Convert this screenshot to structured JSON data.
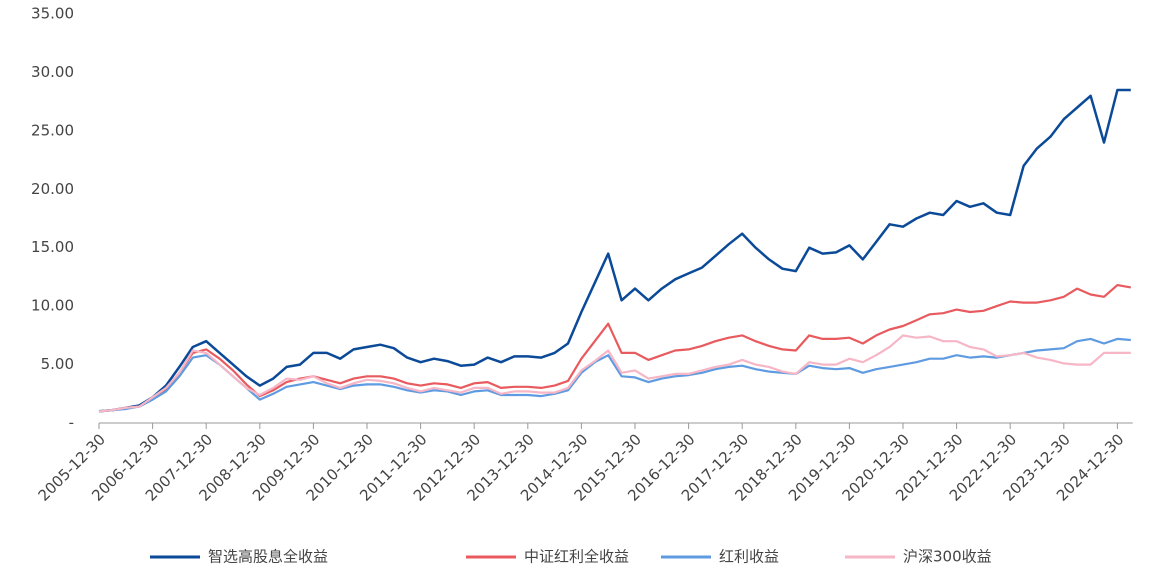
{
  "chart_data": {
    "type": "line",
    "categories": [
      "2005-12-30",
      null,
      null,
      null,
      "2006-12-30",
      null,
      null,
      null,
      "2007-12-30",
      null,
      null,
      null,
      "2008-12-30",
      null,
      null,
      null,
      "2009-12-30",
      null,
      null,
      null,
      "2010-12-30",
      null,
      null,
      null,
      "2011-12-30",
      null,
      null,
      null,
      "2012-12-30",
      null,
      null,
      null,
      "2013-12-30",
      null,
      null,
      null,
      "2014-12-30",
      null,
      null,
      null,
      "2015-12-30",
      null,
      null,
      null,
      "2016-12-30",
      null,
      null,
      null,
      "2017-12-30",
      null,
      null,
      null,
      "2018-12-30",
      null,
      null,
      null,
      "2019-12-30",
      null,
      null,
      null,
      "2020-12-30",
      null,
      null,
      null,
      "2021-12-30",
      null,
      null,
      null,
      "2022-12-30",
      null,
      null,
      null,
      "2023-12-30",
      null,
      null,
      null,
      "2024-12-30",
      null
    ],
    "series": [
      {
        "name": "智选高股息全收益",
        "color": "#0b4a98",
        "values": [
          1.0,
          1.1,
          1.3,
          1.5,
          2.2,
          3.2,
          4.8,
          6.5,
          7.0,
          6.0,
          5.0,
          4.0,
          3.2,
          3.8,
          4.8,
          5.0,
          6.0,
          6.0,
          5.5,
          6.3,
          6.5,
          6.7,
          6.4,
          5.6,
          5.2,
          5.5,
          5.3,
          4.9,
          5.0,
          5.6,
          5.2,
          5.7,
          5.7,
          5.6,
          6.0,
          6.8,
          9.5,
          12.0,
          14.5,
          10.5,
          11.5,
          10.5,
          11.5,
          12.3,
          12.8,
          13.3,
          14.3,
          15.3,
          16.2,
          15.0,
          14.0,
          13.2,
          13.0,
          15.0,
          14.5,
          14.6,
          15.2,
          14.0,
          15.5,
          17.0,
          16.8,
          17.5,
          18.0,
          17.8,
          19.0,
          18.5,
          18.8,
          18.0,
          17.8,
          22.0,
          23.5,
          24.5,
          26.0,
          27.0,
          28.0,
          24.0,
          28.5,
          28.5
        ]
      },
      {
        "name": "中证红利全收益",
        "color": "#e85a5e",
        "values": [
          1.0,
          1.1,
          1.3,
          1.4,
          2.1,
          2.9,
          4.3,
          6.0,
          6.3,
          5.5,
          4.5,
          3.3,
          2.3,
          2.8,
          3.5,
          3.8,
          4.0,
          3.7,
          3.4,
          3.8,
          4.0,
          4.0,
          3.8,
          3.4,
          3.2,
          3.4,
          3.3,
          3.0,
          3.4,
          3.5,
          3.0,
          3.1,
          3.1,
          3.0,
          3.2,
          3.6,
          5.5,
          7.0,
          8.5,
          6.0,
          6.0,
          5.4,
          5.8,
          6.2,
          6.3,
          6.6,
          7.0,
          7.3,
          7.5,
          7.0,
          6.6,
          6.3,
          6.2,
          7.5,
          7.2,
          7.2,
          7.3,
          6.8,
          7.5,
          8.0,
          8.3,
          8.8,
          9.3,
          9.4,
          9.7,
          9.5,
          9.6,
          10.0,
          10.4,
          10.3,
          10.3,
          10.5,
          10.8,
          11.5,
          11.0,
          10.8,
          11.8,
          11.6
        ]
      },
      {
        "name": "红利收益",
        "color": "#5e9be0",
        "values": [
          1.0,
          1.1,
          1.2,
          1.4,
          2.0,
          2.7,
          4.0,
          5.6,
          5.8,
          5.0,
          4.0,
          3.0,
          2.0,
          2.5,
          3.1,
          3.3,
          3.5,
          3.2,
          2.9,
          3.2,
          3.3,
          3.3,
          3.1,
          2.8,
          2.6,
          2.8,
          2.7,
          2.4,
          2.7,
          2.8,
          2.4,
          2.4,
          2.4,
          2.3,
          2.5,
          2.8,
          4.3,
          5.2,
          5.8,
          4.0,
          3.9,
          3.5,
          3.8,
          4.0,
          4.1,
          4.3,
          4.6,
          4.8,
          4.9,
          4.6,
          4.4,
          4.3,
          4.2,
          4.9,
          4.7,
          4.6,
          4.7,
          4.3,
          4.6,
          4.8,
          5.0,
          5.2,
          5.5,
          5.5,
          5.8,
          5.6,
          5.7,
          5.6,
          5.8,
          6.0,
          6.2,
          6.3,
          6.4,
          7.0,
          7.2,
          6.8,
          7.2,
          7.1
        ]
      },
      {
        "name": "沪深300收益",
        "color": "#f6b6c6",
        "values": [
          1.0,
          1.1,
          1.3,
          1.4,
          2.2,
          3.0,
          4.3,
          6.2,
          6.0,
          5.0,
          4.0,
          3.0,
          2.4,
          3.0,
          3.8,
          3.7,
          4.0,
          3.4,
          3.0,
          3.4,
          3.7,
          3.6,
          3.4,
          3.0,
          2.7,
          3.0,
          2.8,
          2.6,
          3.0,
          3.0,
          2.5,
          2.7,
          2.7,
          2.6,
          2.6,
          3.0,
          4.5,
          5.3,
          6.2,
          4.3,
          4.5,
          3.8,
          4.0,
          4.2,
          4.2,
          4.5,
          4.8,
          5.0,
          5.4,
          5.0,
          4.8,
          4.4,
          4.2,
          5.2,
          5.0,
          5.0,
          5.5,
          5.2,
          5.8,
          6.5,
          7.5,
          7.3,
          7.4,
          7.0,
          7.0,
          6.5,
          6.3,
          5.7,
          5.8,
          6.0,
          5.6,
          5.4,
          5.1,
          5.0,
          5.0,
          6.0,
          6.0,
          6.0
        ]
      }
    ],
    "ylim": [
      0,
      35
    ],
    "yticks": [
      {
        "value": 0,
        "label": "-"
      },
      {
        "value": 5,
        "label": "5.00"
      },
      {
        "value": 10,
        "label": "10.00"
      },
      {
        "value": 15,
        "label": "15.00"
      },
      {
        "value": 20,
        "label": "20.00"
      },
      {
        "value": 25,
        "label": "25.00"
      },
      {
        "value": 30,
        "label": "30.00"
      },
      {
        "value": 35,
        "label": "35.00"
      }
    ],
    "grid": false,
    "legend": "bottom"
  }
}
